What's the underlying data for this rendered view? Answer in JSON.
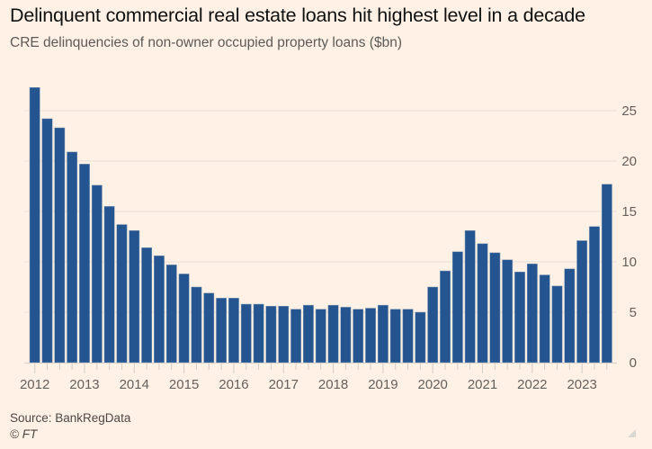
{
  "header": {
    "title": "Delinquent commercial real estate loans hit highest level in a decade",
    "subtitle": "CRE delinquencies of non-owner occupied property loans ($bn)"
  },
  "footer": {
    "source": "Source: BankRegData",
    "copyright": "© FT"
  },
  "colors": {
    "background": "#fff1e5",
    "bar": "#245590",
    "gridline": "#ebe3dc",
    "axis_text": "#66605c"
  },
  "chart_data": {
    "type": "bar",
    "title": "Delinquent commercial real estate loans hit highest level in a decade",
    "subtitle": "CRE delinquencies of non-owner occupied property loans ($bn)",
    "xlabel": "",
    "ylabel": "$bn",
    "ylim": [
      0,
      27.5
    ],
    "yticks": [
      0,
      5,
      10,
      15,
      20,
      25
    ],
    "y_axis_side": "right",
    "grid": true,
    "legend": "none",
    "frequency": "quarterly",
    "categories": [
      "2012 Q1",
      "2012 Q2",
      "2012 Q3",
      "2012 Q4",
      "2013 Q1",
      "2013 Q2",
      "2013 Q3",
      "2013 Q4",
      "2014 Q1",
      "2014 Q2",
      "2014 Q3",
      "2014 Q4",
      "2015 Q1",
      "2015 Q2",
      "2015 Q3",
      "2015 Q4",
      "2016 Q1",
      "2016 Q2",
      "2016 Q3",
      "2016 Q4",
      "2017 Q1",
      "2017 Q2",
      "2017 Q3",
      "2017 Q4",
      "2018 Q1",
      "2018 Q2",
      "2018 Q3",
      "2018 Q4",
      "2019 Q1",
      "2019 Q2",
      "2019 Q3",
      "2019 Q4",
      "2020 Q1",
      "2020 Q2",
      "2020 Q3",
      "2020 Q4",
      "2021 Q1",
      "2021 Q2",
      "2021 Q3",
      "2021 Q4",
      "2022 Q1",
      "2022 Q2",
      "2022 Q3",
      "2022 Q4",
      "2023 Q1",
      "2023 Q2",
      "2023 Q3"
    ],
    "values": [
      27.3,
      24.2,
      23.3,
      20.9,
      19.7,
      17.6,
      15.5,
      13.7,
      13.1,
      11.4,
      10.6,
      9.7,
      8.8,
      7.5,
      6.9,
      6.4,
      6.4,
      5.8,
      5.8,
      5.6,
      5.6,
      5.3,
      5.7,
      5.3,
      5.7,
      5.5,
      5.3,
      5.4,
      5.7,
      5.3,
      5.3,
      5.0,
      7.5,
      9.1,
      11.0,
      13.1,
      11.8,
      10.9,
      10.2,
      9.0,
      9.8,
      8.7,
      7.6,
      9.3,
      12.1,
      13.5,
      17.7
    ],
    "xtick_labels": [
      "2012",
      "2013",
      "2014",
      "2015",
      "2016",
      "2017",
      "2018",
      "2019",
      "2020",
      "2021",
      "2022",
      "2023"
    ],
    "ytick_labels": [
      "0",
      "5",
      "10",
      "15",
      "20",
      "25"
    ]
  }
}
